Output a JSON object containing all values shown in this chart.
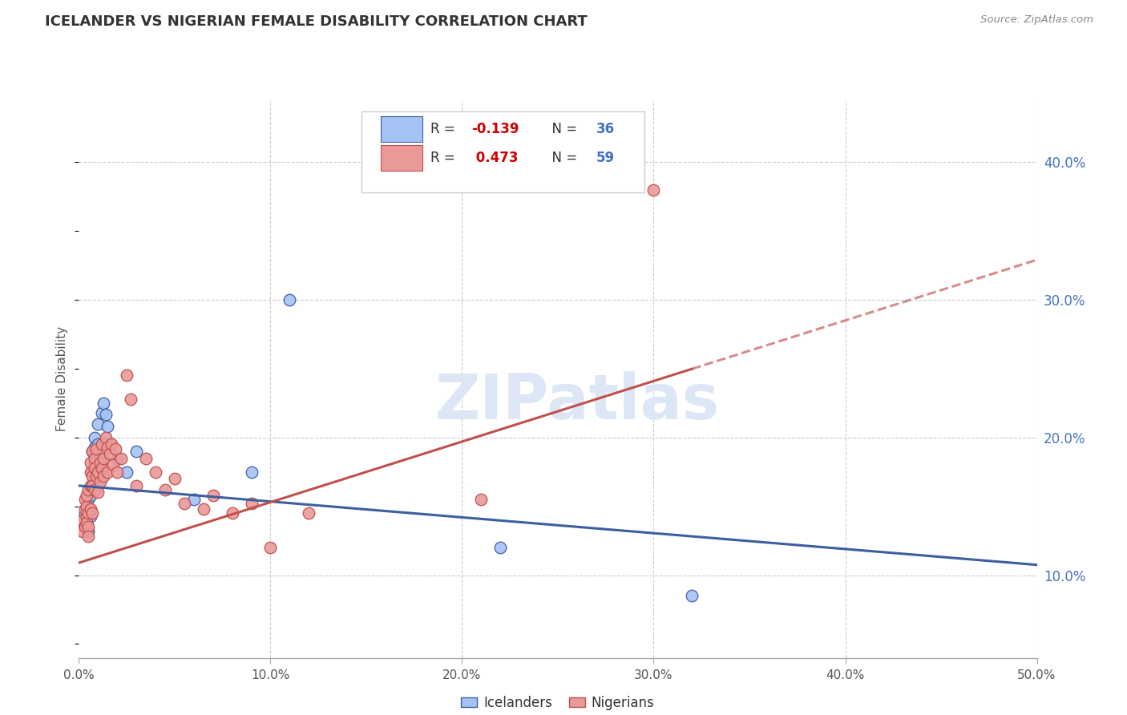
{
  "title": "ICELANDER VS NIGERIAN FEMALE DISABILITY CORRELATION CHART",
  "source": "Source: ZipAtlas.com",
  "ylabel": "Female Disability",
  "right_ytick_vals": [
    0.1,
    0.2,
    0.3,
    0.4
  ],
  "xlim": [
    0.0,
    0.5
  ],
  "ylim": [
    0.04,
    0.445
  ],
  "ice_R": -0.139,
  "ice_N": 36,
  "nig_R": 0.473,
  "nig_N": 59,
  "ice_color": "#a4c2f4",
  "nig_color": "#ea9999",
  "ice_line_color": "#3d5fa0",
  "nig_line_color": "#c0504d",
  "background_color": "#ffffff",
  "grid_color": "#cccccc",
  "watermark_color": "#dce6f5",
  "nig_line_solid_end": 0.32,
  "ice_x": [
    0.002,
    0.003,
    0.003,
    0.004,
    0.004,
    0.004,
    0.005,
    0.005,
    0.005,
    0.006,
    0.006,
    0.006,
    0.007,
    0.007,
    0.007,
    0.008,
    0.008,
    0.008,
    0.009,
    0.009,
    0.01,
    0.01,
    0.011,
    0.012,
    0.013,
    0.014,
    0.015,
    0.016,
    0.02,
    0.025,
    0.03,
    0.06,
    0.09,
    0.11,
    0.22,
    0.32
  ],
  "ice_y": [
    0.14,
    0.135,
    0.145,
    0.15,
    0.142,
    0.138,
    0.155,
    0.148,
    0.132,
    0.16,
    0.158,
    0.143,
    0.19,
    0.175,
    0.165,
    0.2,
    0.193,
    0.182,
    0.172,
    0.163,
    0.21,
    0.195,
    0.185,
    0.218,
    0.225,
    0.217,
    0.208,
    0.195,
    0.185,
    0.175,
    0.19,
    0.155,
    0.175,
    0.3,
    0.12,
    0.085
  ],
  "nig_x": [
    0.002,
    0.002,
    0.003,
    0.003,
    0.003,
    0.004,
    0.004,
    0.004,
    0.004,
    0.005,
    0.005,
    0.005,
    0.005,
    0.006,
    0.006,
    0.006,
    0.006,
    0.007,
    0.007,
    0.007,
    0.007,
    0.008,
    0.008,
    0.008,
    0.009,
    0.009,
    0.01,
    0.01,
    0.011,
    0.011,
    0.012,
    0.012,
    0.013,
    0.013,
    0.014,
    0.015,
    0.015,
    0.016,
    0.017,
    0.018,
    0.019,
    0.02,
    0.022,
    0.025,
    0.027,
    0.03,
    0.035,
    0.04,
    0.045,
    0.05,
    0.055,
    0.065,
    0.07,
    0.08,
    0.09,
    0.1,
    0.12,
    0.21,
    0.3
  ],
  "nig_y": [
    0.14,
    0.132,
    0.148,
    0.155,
    0.135,
    0.142,
    0.15,
    0.158,
    0.138,
    0.162,
    0.145,
    0.135,
    0.128,
    0.165,
    0.175,
    0.182,
    0.148,
    0.172,
    0.165,
    0.19,
    0.145,
    0.185,
    0.178,
    0.162,
    0.192,
    0.172,
    0.175,
    0.16,
    0.182,
    0.168,
    0.195,
    0.178,
    0.185,
    0.172,
    0.2,
    0.193,
    0.175,
    0.188,
    0.195,
    0.18,
    0.192,
    0.175,
    0.185,
    0.245,
    0.228,
    0.165,
    0.185,
    0.175,
    0.162,
    0.17,
    0.152,
    0.148,
    0.158,
    0.145,
    0.152,
    0.12,
    0.145,
    0.155,
    0.38
  ]
}
